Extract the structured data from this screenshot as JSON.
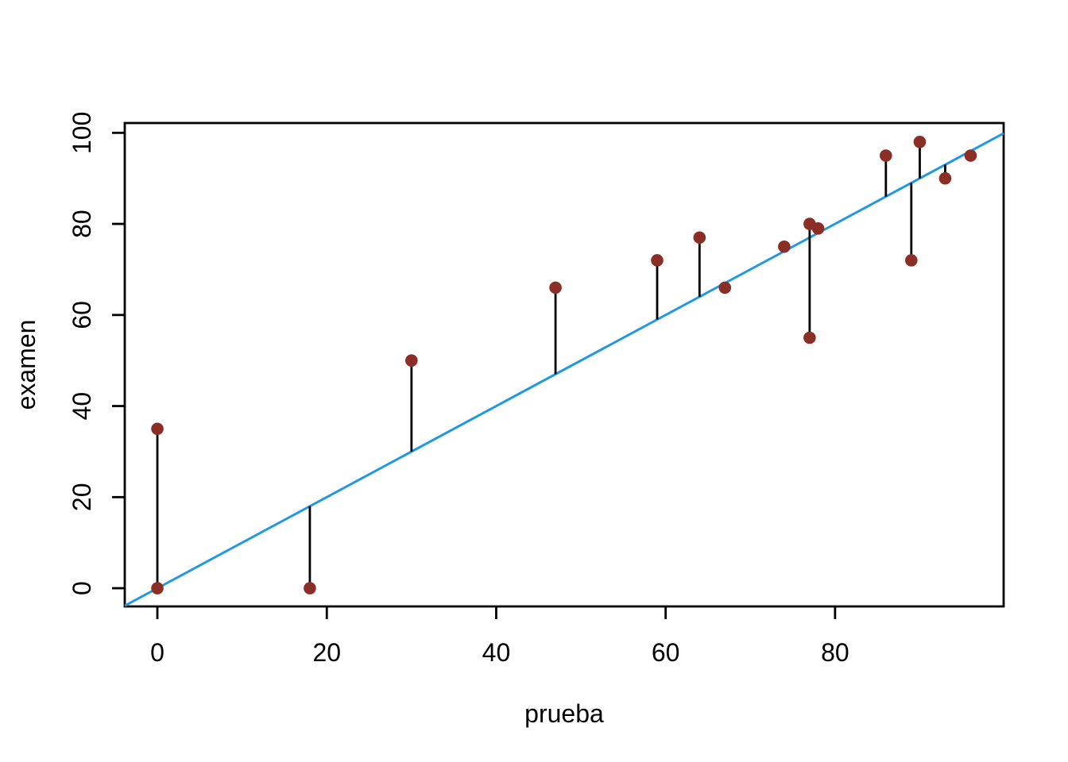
{
  "chart_data": {
    "type": "scatter",
    "title": "",
    "xlabel": "prueba",
    "ylabel": "examen",
    "x_ticks": [
      0,
      20,
      40,
      60,
      80
    ],
    "y_ticks": [
      0,
      20,
      40,
      60,
      80,
      100
    ],
    "xlim": [
      -3.85,
      99.9
    ],
    "ylim": [
      -4.0,
      102.15
    ],
    "grid": false,
    "legend_position": "none",
    "points": [
      {
        "x": 0,
        "y": 0
      },
      {
        "x": 0,
        "y": 35
      },
      {
        "x": 18,
        "y": 0
      },
      {
        "x": 30,
        "y": 50
      },
      {
        "x": 47,
        "y": 66
      },
      {
        "x": 59,
        "y": 72
      },
      {
        "x": 64,
        "y": 77
      },
      {
        "x": 67,
        "y": 66
      },
      {
        "x": 74,
        "y": 75
      },
      {
        "x": 77,
        "y": 55
      },
      {
        "x": 77,
        "y": 80
      },
      {
        "x": 78,
        "y": 79
      },
      {
        "x": 86,
        "y": 95
      },
      {
        "x": 89,
        "y": 72
      },
      {
        "x": 90,
        "y": 98
      },
      {
        "x": 93,
        "y": 90
      },
      {
        "x": 96,
        "y": 95
      }
    ],
    "identity_line": {
      "slope": 1,
      "intercept": 0,
      "color": "#2297E6"
    },
    "residual_segments": true,
    "colors": {
      "point": "#8B2E26",
      "segment": "#000000",
      "axis": "#000000",
      "background": "#FFFFFF"
    }
  }
}
